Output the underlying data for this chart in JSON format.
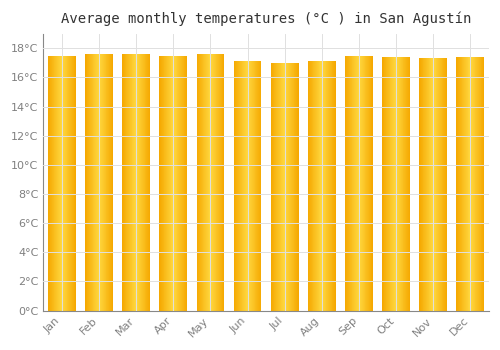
{
  "title": "Average monthly temperatures (°C ) in San Agustín",
  "months": [
    "Jan",
    "Feb",
    "Mar",
    "Apr",
    "May",
    "Jun",
    "Jul",
    "Aug",
    "Sep",
    "Oct",
    "Nov",
    "Dec"
  ],
  "values": [
    17.5,
    17.6,
    17.6,
    17.5,
    17.6,
    17.1,
    17.0,
    17.1,
    17.5,
    17.4,
    17.3,
    17.4
  ],
  "bar_color_edge": "#F5A800",
  "bar_color_center": "#FFD840",
  "background_color": "#FFFFFF",
  "grid_color": "#E0E0E0",
  "ylim": [
    0,
    19
  ],
  "yticks": [
    0,
    2,
    4,
    6,
    8,
    10,
    12,
    14,
    16,
    18
  ],
  "title_fontsize": 10,
  "tick_fontsize": 8,
  "bar_width": 0.75
}
